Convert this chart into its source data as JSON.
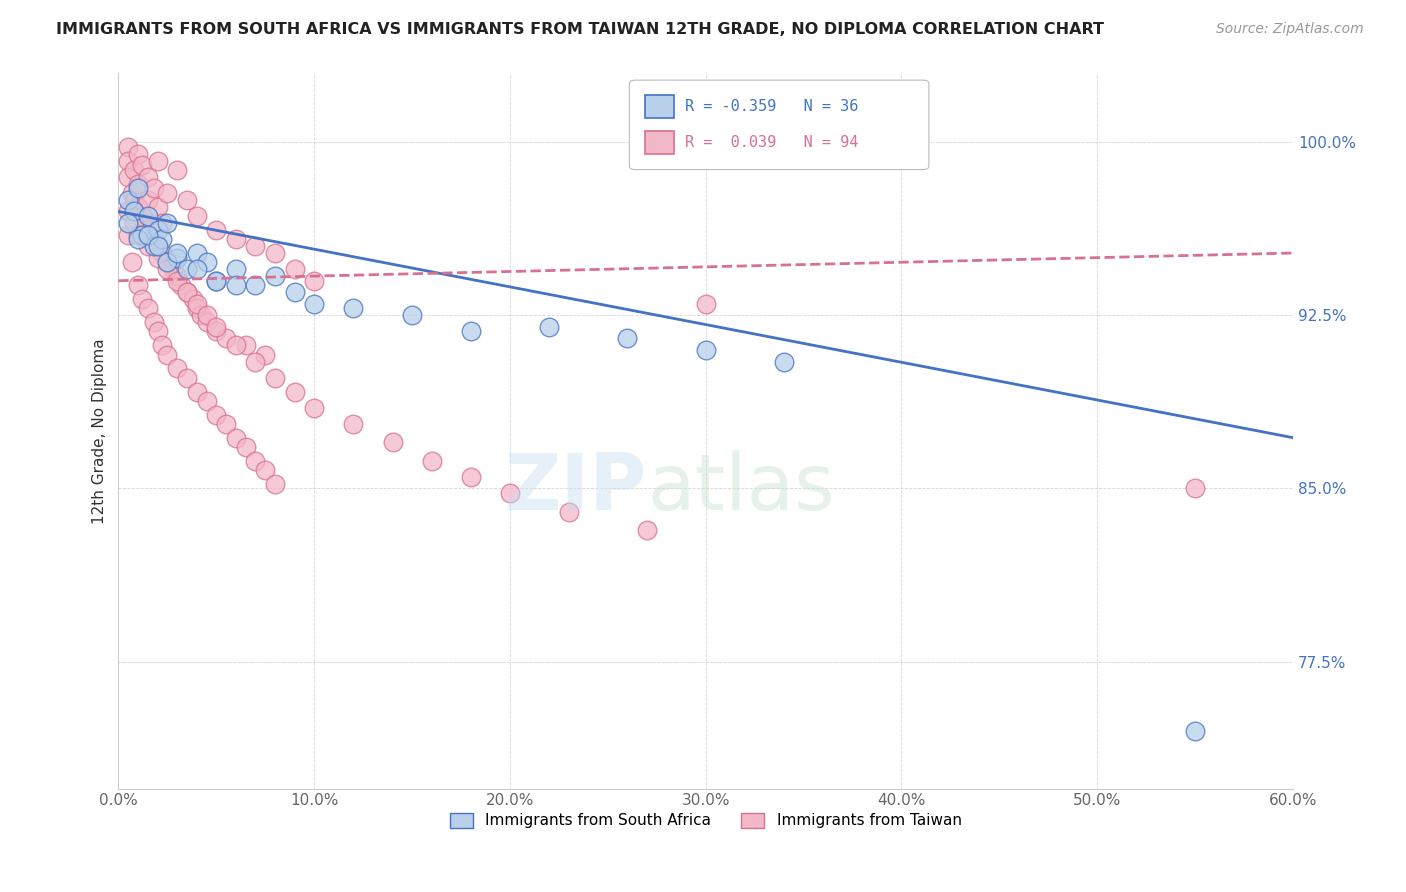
{
  "title": "IMMIGRANTS FROM SOUTH AFRICA VS IMMIGRANTS FROM TAIWAN 12TH GRADE, NO DIPLOMA CORRELATION CHART",
  "source": "Source: ZipAtlas.com",
  "ylabel": "12th Grade, No Diploma",
  "xlim": [
    0.0,
    0.6
  ],
  "ylim": [
    0.72,
    1.03
  ],
  "yticks": [
    0.775,
    0.85,
    0.925,
    1.0
  ],
  "ytick_labels": [
    "77.5%",
    "85.0%",
    "92.5%",
    "100.0%"
  ],
  "xticks": [
    0.0,
    0.1,
    0.2,
    0.3,
    0.4,
    0.5,
    0.6
  ],
  "xtick_labels": [
    "0.0%",
    "10.0%",
    "20.0%",
    "30.0%",
    "40.0%",
    "50.0%",
    "60.0%"
  ],
  "legend_labels": [
    "Immigrants from South Africa",
    "Immigrants from Taiwan"
  ],
  "legend_r": [
    -0.359,
    0.039
  ],
  "legend_n": [
    36,
    94
  ],
  "blue_color": "#b8d0ea",
  "blue_border": "#4472c4",
  "pink_color": "#f2b8c8",
  "pink_border": "#d87090",
  "blue_line_color": "#4472c4",
  "pink_line_color": "#d87090",
  "blue_line_x0": 0.0,
  "blue_line_y0": 0.97,
  "blue_line_x1": 0.6,
  "blue_line_y1": 0.872,
  "pink_line_x0": 0.0,
  "pink_line_y0": 0.94,
  "pink_line_x1": 0.6,
  "pink_line_y1": 0.952,
  "blue_scatter_x": [
    0.005,
    0.008,
    0.01,
    0.012,
    0.015,
    0.018,
    0.02,
    0.022,
    0.025,
    0.03,
    0.035,
    0.04,
    0.045,
    0.05,
    0.06,
    0.07,
    0.08,
    0.09,
    0.1,
    0.12,
    0.15,
    0.18,
    0.22,
    0.26,
    0.3,
    0.34,
    0.005,
    0.01,
    0.015,
    0.02,
    0.025,
    0.03,
    0.04,
    0.05,
    0.06,
    0.55
  ],
  "blue_scatter_y": [
    0.975,
    0.97,
    0.98,
    0.96,
    0.968,
    0.955,
    0.962,
    0.958,
    0.965,
    0.95,
    0.945,
    0.952,
    0.948,
    0.94,
    0.945,
    0.938,
    0.942,
    0.935,
    0.93,
    0.928,
    0.925,
    0.918,
    0.92,
    0.915,
    0.91,
    0.905,
    0.965,
    0.958,
    0.96,
    0.955,
    0.948,
    0.952,
    0.945,
    0.94,
    0.938,
    0.745
  ],
  "pink_scatter_x": [
    0.005,
    0.005,
    0.005,
    0.007,
    0.008,
    0.008,
    0.01,
    0.01,
    0.01,
    0.012,
    0.012,
    0.013,
    0.015,
    0.015,
    0.015,
    0.018,
    0.018,
    0.02,
    0.02,
    0.02,
    0.022,
    0.022,
    0.025,
    0.025,
    0.028,
    0.03,
    0.03,
    0.032,
    0.035,
    0.035,
    0.038,
    0.04,
    0.04,
    0.042,
    0.045,
    0.05,
    0.05,
    0.055,
    0.06,
    0.065,
    0.07,
    0.075,
    0.08,
    0.09,
    0.1,
    0.005,
    0.007,
    0.01,
    0.012,
    0.015,
    0.018,
    0.02,
    0.022,
    0.025,
    0.03,
    0.035,
    0.04,
    0.045,
    0.05,
    0.055,
    0.06,
    0.065,
    0.07,
    0.075,
    0.08,
    0.005,
    0.008,
    0.01,
    0.015,
    0.02,
    0.025,
    0.03,
    0.035,
    0.04,
    0.045,
    0.05,
    0.06,
    0.07,
    0.08,
    0.09,
    0.1,
    0.12,
    0.14,
    0.16,
    0.18,
    0.2,
    0.23,
    0.27,
    0.55,
    0.3
  ],
  "pink_scatter_y": [
    0.998,
    0.992,
    0.985,
    0.978,
    0.988,
    0.975,
    0.995,
    0.982,
    0.972,
    0.99,
    0.968,
    0.965,
    0.985,
    0.975,
    0.962,
    0.98,
    0.958,
    0.992,
    0.972,
    0.955,
    0.965,
    0.952,
    0.978,
    0.948,
    0.945,
    0.988,
    0.942,
    0.938,
    0.975,
    0.935,
    0.932,
    0.968,
    0.928,
    0.925,
    0.922,
    0.962,
    0.918,
    0.915,
    0.958,
    0.912,
    0.955,
    0.908,
    0.952,
    0.945,
    0.94,
    0.96,
    0.948,
    0.938,
    0.932,
    0.928,
    0.922,
    0.918,
    0.912,
    0.908,
    0.902,
    0.898,
    0.892,
    0.888,
    0.882,
    0.878,
    0.872,
    0.868,
    0.862,
    0.858,
    0.852,
    0.97,
    0.965,
    0.96,
    0.955,
    0.95,
    0.945,
    0.94,
    0.935,
    0.93,
    0.925,
    0.92,
    0.912,
    0.905,
    0.898,
    0.892,
    0.885,
    0.878,
    0.87,
    0.862,
    0.855,
    0.848,
    0.84,
    0.832,
    0.85,
    0.93
  ]
}
